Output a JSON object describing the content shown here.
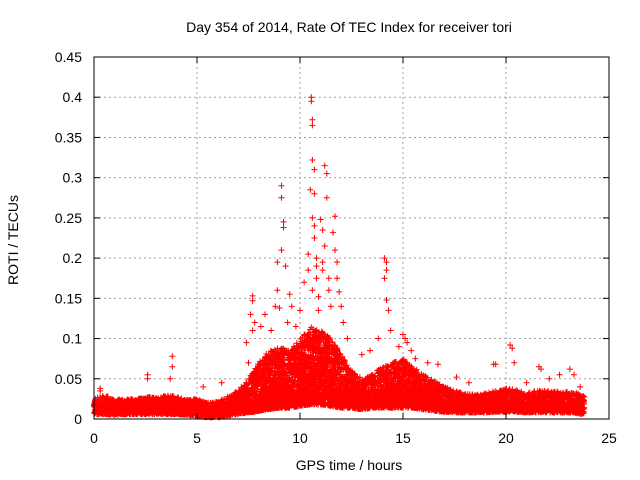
{
  "chart_data": {
    "type": "scatter",
    "title": "Day 354 of 2014, Rate Of TEC Index for receiver tori",
    "xlabel": "GPS time / hours",
    "ylabel": "ROTI / TECUs",
    "xlim": [
      0,
      25
    ],
    "ylim": [
      0,
      0.45
    ],
    "x_ticks": [
      0,
      5,
      10,
      15,
      20,
      25
    ],
    "x_tick_labels": [
      "0",
      "5",
      "10",
      "15",
      "20",
      "25"
    ],
    "y_ticks": [
      0,
      0.05,
      0.1,
      0.15,
      0.2,
      0.25,
      0.3,
      0.35,
      0.4,
      0.45
    ],
    "y_tick_labels": [
      "0",
      "0.05",
      "0.1",
      "0.15",
      "0.2",
      "0.25",
      "0.3",
      "0.35",
      "0.4",
      "0.45"
    ],
    "grid": true,
    "marker": "+",
    "series": [
      {
        "name": "ROTI",
        "color": "#ff0000",
        "points": [
          [
            0.3,
            0.038
          ],
          [
            0.3,
            0.035
          ],
          [
            2.6,
            0.055
          ],
          [
            2.6,
            0.05
          ],
          [
            3.8,
            0.078
          ],
          [
            3.8,
            0.065
          ],
          [
            3.7,
            0.05
          ],
          [
            5.3,
            0.04
          ],
          [
            6.2,
            0.045
          ],
          [
            7.4,
            0.095
          ],
          [
            7.5,
            0.07
          ],
          [
            7.7,
            0.11
          ],
          [
            7.8,
            0.12
          ],
          [
            7.6,
            0.13
          ],
          [
            7.7,
            0.153
          ],
          [
            7.7,
            0.147
          ],
          [
            8.1,
            0.115
          ],
          [
            8.3,
            0.13
          ],
          [
            8.6,
            0.11
          ],
          [
            8.8,
            0.14
          ],
          [
            8.9,
            0.195
          ],
          [
            8.9,
            0.16
          ],
          [
            9.0,
            0.138
          ],
          [
            9.1,
            0.29
          ],
          [
            9.1,
            0.275
          ],
          [
            9.2,
            0.245
          ],
          [
            9.2,
            0.238
          ],
          [
            9.1,
            0.21
          ],
          [
            9.3,
            0.19
          ],
          [
            9.5,
            0.155
          ],
          [
            9.6,
            0.14
          ],
          [
            9.4,
            0.12
          ],
          [
            9.8,
            0.115
          ],
          [
            10.0,
            0.135
          ],
          [
            10.2,
            0.17
          ],
          [
            10.4,
            0.205
          ],
          [
            10.4,
            0.185
          ],
          [
            10.5,
            0.285
          ],
          [
            10.55,
            0.4
          ],
          [
            10.55,
            0.395
          ],
          [
            10.6,
            0.372
          ],
          [
            10.6,
            0.365
          ],
          [
            10.6,
            0.322
          ],
          [
            10.7,
            0.31
          ],
          [
            10.7,
            0.28
          ],
          [
            10.6,
            0.25
          ],
          [
            10.7,
            0.24
          ],
          [
            10.7,
            0.225
          ],
          [
            10.8,
            0.2
          ],
          [
            10.8,
            0.19
          ],
          [
            10.8,
            0.175
          ],
          [
            10.6,
            0.16
          ],
          [
            10.9,
            0.152
          ],
          [
            10.9,
            0.135
          ],
          [
            11.0,
            0.248
          ],
          [
            11.1,
            0.235
          ],
          [
            11.1,
            0.195
          ],
          [
            11.1,
            0.185
          ],
          [
            11.2,
            0.315
          ],
          [
            11.3,
            0.305
          ],
          [
            11.3,
            0.275
          ],
          [
            11.2,
            0.215
          ],
          [
            11.4,
            0.175
          ],
          [
            11.4,
            0.16
          ],
          [
            11.5,
            0.14
          ],
          [
            11.6,
            0.232
          ],
          [
            11.7,
            0.252
          ],
          [
            11.7,
            0.21
          ],
          [
            11.8,
            0.195
          ],
          [
            11.8,
            0.175
          ],
          [
            11.9,
            0.158
          ],
          [
            12.0,
            0.14
          ],
          [
            12.1,
            0.12
          ],
          [
            12.3,
            0.1
          ],
          [
            13.0,
            0.08
          ],
          [
            13.4,
            0.085
          ],
          [
            13.8,
            0.1
          ],
          [
            14.1,
            0.2
          ],
          [
            14.2,
            0.195
          ],
          [
            14.2,
            0.185
          ],
          [
            14.1,
            0.175
          ],
          [
            14.2,
            0.148
          ],
          [
            14.3,
            0.135
          ],
          [
            14.4,
            0.11
          ],
          [
            14.8,
            0.09
          ],
          [
            15.0,
            0.105
          ],
          [
            15.1,
            0.1
          ],
          [
            15.2,
            0.095
          ],
          [
            15.4,
            0.085
          ],
          [
            15.6,
            0.075
          ],
          [
            16.2,
            0.07
          ],
          [
            16.7,
            0.068
          ],
          [
            17.6,
            0.052
          ],
          [
            18.2,
            0.045
          ],
          [
            19.4,
            0.068
          ],
          [
            19.5,
            0.068
          ],
          [
            20.2,
            0.092
          ],
          [
            20.3,
            0.088
          ],
          [
            20.4,
            0.07
          ],
          [
            21.0,
            0.045
          ],
          [
            21.6,
            0.065
          ],
          [
            21.7,
            0.062
          ],
          [
            22.1,
            0.05
          ],
          [
            22.6,
            0.055
          ],
          [
            23.1,
            0.062
          ],
          [
            23.3,
            0.055
          ],
          [
            23.6,
            0.04
          ]
        ]
      }
    ],
    "band_envelope": [
      [
        0.0,
        0.012,
        0.025
      ],
      [
        0.5,
        0.012,
        0.03
      ],
      [
        1.0,
        0.011,
        0.024
      ],
      [
        1.5,
        0.012,
        0.025
      ],
      [
        2.0,
        0.012,
        0.025
      ],
      [
        2.5,
        0.012,
        0.028
      ],
      [
        3.0,
        0.012,
        0.026
      ],
      [
        3.5,
        0.012,
        0.03
      ],
      [
        4.0,
        0.012,
        0.028
      ],
      [
        4.5,
        0.011,
        0.024
      ],
      [
        5.0,
        0.01,
        0.025
      ],
      [
        5.5,
        0.008,
        0.02
      ],
      [
        6.0,
        0.008,
        0.022
      ],
      [
        6.5,
        0.01,
        0.028
      ],
      [
        7.0,
        0.012,
        0.035
      ],
      [
        7.5,
        0.014,
        0.05
      ],
      [
        8.0,
        0.016,
        0.07
      ],
      [
        8.5,
        0.018,
        0.085
      ],
      [
        9.0,
        0.02,
        0.09
      ],
      [
        9.5,
        0.02,
        0.085
      ],
      [
        10.0,
        0.022,
        0.1
      ],
      [
        10.5,
        0.024,
        0.115
      ],
      [
        11.0,
        0.024,
        0.11
      ],
      [
        11.5,
        0.022,
        0.1
      ],
      [
        12.0,
        0.02,
        0.08
      ],
      [
        12.5,
        0.02,
        0.06
      ],
      [
        13.0,
        0.018,
        0.05
      ],
      [
        13.5,
        0.02,
        0.055
      ],
      [
        14.0,
        0.02,
        0.065
      ],
      [
        14.5,
        0.02,
        0.07
      ],
      [
        15.0,
        0.02,
        0.075
      ],
      [
        15.5,
        0.02,
        0.065
      ],
      [
        16.0,
        0.018,
        0.055
      ],
      [
        16.5,
        0.016,
        0.048
      ],
      [
        17.0,
        0.015,
        0.04
      ],
      [
        17.5,
        0.014,
        0.035
      ],
      [
        18.0,
        0.014,
        0.032
      ],
      [
        18.5,
        0.014,
        0.03
      ],
      [
        19.0,
        0.014,
        0.032
      ],
      [
        19.5,
        0.015,
        0.035
      ],
      [
        20.0,
        0.015,
        0.038
      ],
      [
        20.5,
        0.015,
        0.036
      ],
      [
        21.0,
        0.014,
        0.032
      ],
      [
        21.5,
        0.014,
        0.036
      ],
      [
        22.0,
        0.014,
        0.035
      ],
      [
        22.5,
        0.014,
        0.034
      ],
      [
        23.0,
        0.014,
        0.034
      ],
      [
        23.5,
        0.013,
        0.032
      ],
      [
        23.8,
        0.012,
        0.028
      ]
    ]
  }
}
